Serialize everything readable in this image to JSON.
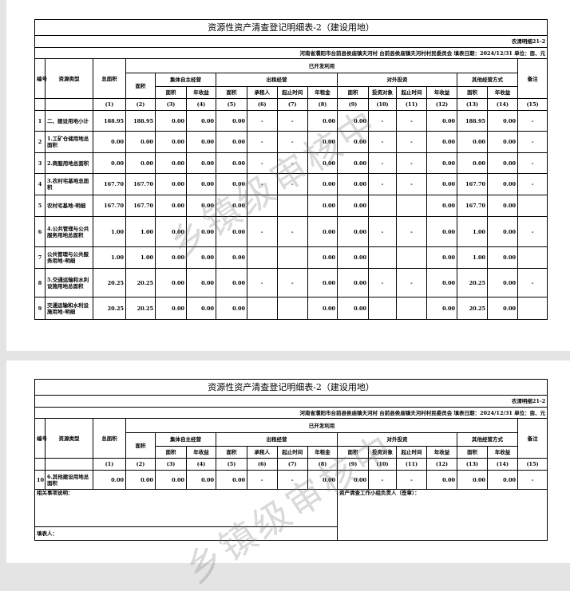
{
  "title": "资源性资产清查登记明细表-2（建设用地）",
  "form_code": "农清明细21-2",
  "location_line": "河南省濮阳市台前县侯庙镇夫河村  台前县侯庙镇夫河村村民委员会  填表日期：2024/12/31  单位：亩、元",
  "watermark": "乡镇级审核中",
  "headers": {
    "no": "编号",
    "type": "资源类型",
    "total_area": "总面积",
    "developed": "已开发利用",
    "remarks": "备注",
    "area": "面积",
    "collective": "集体自主经营",
    "lease": "出租经营",
    "investment": "对外投资",
    "other": "其他经营方式",
    "sub": [
      "面积",
      "年收益",
      "面积",
      "承租人",
      "起止时间",
      "年租金",
      "面积",
      "投资对象",
      "起止时间",
      "年收益",
      "面积",
      "年收益"
    ],
    "col_numbers": [
      "(1)",
      "(2)",
      "(3)",
      "(4)",
      "(5)",
      "(6)",
      "(7)",
      "(8)",
      "(9)",
      "(10)",
      "(11)",
      "(12)",
      "(13)",
      "(14)",
      "(15)"
    ]
  },
  "page1_rows": [
    {
      "no": "1",
      "type": "二、建设用地小计",
      "values": [
        "188.95",
        "188.95",
        "0.00",
        "0.00",
        "0.00",
        "-",
        "-",
        "0.00",
        "0.00",
        "-",
        "-",
        "0.00",
        "188.95",
        "0.00",
        "-"
      ]
    },
    {
      "no": "2",
      "type": "1.工矿仓储用地总面积",
      "values": [
        "0.00",
        "0.00",
        "0.00",
        "0.00",
        "0.00",
        "-",
        "-",
        "0.00",
        "0.00",
        "-",
        "-",
        "0.00",
        "0.00",
        "0.00",
        "-"
      ]
    },
    {
      "no": "3",
      "type": "2.商服用地总面积",
      "values": [
        "0.00",
        "0.00",
        "0.00",
        "0.00",
        "0.00",
        "-",
        "-",
        "0.00",
        "0.00",
        "-",
        "-",
        "0.00",
        "0.00",
        "0.00",
        "-"
      ]
    },
    {
      "no": "4",
      "type": "3.农村宅基地总面积",
      "values": [
        "167.70",
        "167.70",
        "0.00",
        "0.00",
        "0.00",
        "-",
        "-",
        "0.00",
        "0.00",
        "-",
        "-",
        "0.00",
        "167.70",
        "0.00",
        "-"
      ]
    },
    {
      "no": "5",
      "type": "  农村宅基地-明细",
      "values": [
        "167.70",
        "167.70",
        "0.00",
        "0.00",
        "0.00",
        "",
        "",
        "0.00",
        "0.00",
        "",
        "",
        "0.00",
        "167.70",
        "0.00",
        ""
      ]
    },
    {
      "no": "6",
      "type": "4.公共管理与公共服务用地总面积",
      "values": [
        "1.00",
        "1.00",
        "0.00",
        "0.00",
        "0.00",
        "-",
        "-",
        "0.00",
        "0.00",
        "-",
        "-",
        "0.00",
        "1.00",
        "0.00",
        "-"
      ]
    },
    {
      "no": "7",
      "type": "  公共管理与公共服务用地-明细",
      "values": [
        "1.00",
        "1.00",
        "0.00",
        "0.00",
        "0.00",
        "",
        "",
        "0.00",
        "0.00",
        "",
        "",
        "0.00",
        "1.00",
        "0.00",
        ""
      ]
    },
    {
      "no": "8",
      "type": "5.交通运输和水利设施用地总面积",
      "values": [
        "20.25",
        "20.25",
        "0.00",
        "0.00",
        "0.00",
        "-",
        "-",
        "0.00",
        "0.00",
        "-",
        "-",
        "0.00",
        "20.25",
        "0.00",
        "-"
      ]
    },
    {
      "no": "9",
      "type": "  交通运输和水利设施用地-明细",
      "values": [
        "20.25",
        "20.25",
        "0.00",
        "0.00",
        "0.00",
        "",
        "",
        "0.00",
        "0.00",
        "",
        "",
        "0.00",
        "20.25",
        "0.00",
        ""
      ]
    }
  ],
  "page2_rows": [
    {
      "no": "10",
      "type": "6.其他建设用地总面积",
      "values": [
        "0.00",
        "0.00",
        "0.00",
        "0.00",
        "0.00",
        "-",
        "-",
        "0.00",
        "0.00",
        "-",
        "-",
        "0.00",
        "0.00",
        "0.00",
        "-"
      ]
    }
  ],
  "footer": {
    "notes_label": "相关事项说明：",
    "signer_label": "资产清查工作小组负责人（签章）：",
    "preparer_label": "填表人："
  }
}
